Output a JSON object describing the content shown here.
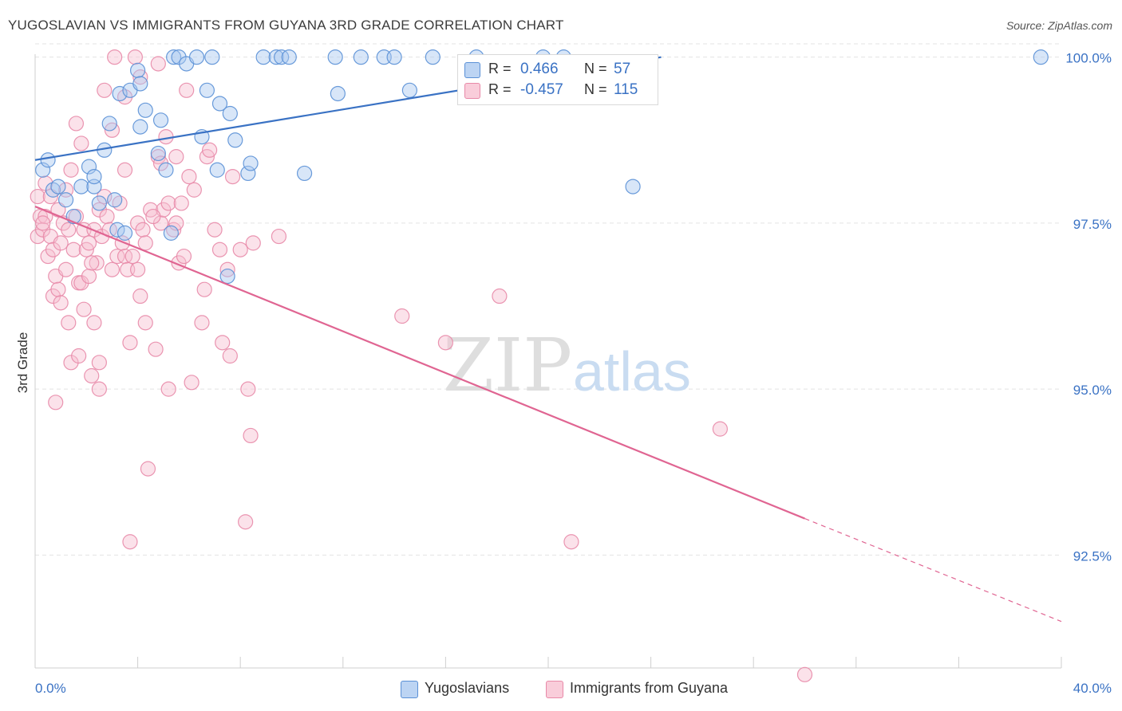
{
  "title": "YUGOSLAVIAN VS IMMIGRANTS FROM GUYANA 3RD GRADE CORRELATION CHART",
  "source": "Source: ZipAtlas.com",
  "watermark": {
    "zip": "ZIP",
    "atlas": "atlas"
  },
  "colors": {
    "blue_fill": "#a9c8ef",
    "blue_stroke": "#5a90d6",
    "blue_line": "#3a72c4",
    "pink_fill": "#f7bfd0",
    "pink_stroke": "#e889a8",
    "pink_line": "#e06592",
    "grid": "#e3e3e3",
    "tick_text": "#3a72c4"
  },
  "legend": {
    "rows": [
      {
        "r_label": "R =",
        "r_value": "0.466",
        "n_label": "N =",
        "n_value": "57"
      },
      {
        "r_label": "R =",
        "r_value": "-0.457",
        "n_label": "N =",
        "n_value": "115"
      }
    ]
  },
  "bottom_legend": [
    "Yugoslavians",
    "Immigrants from Guyana"
  ],
  "chart_data": {
    "type": "scatter",
    "title": "YUGOSLAVIAN VS IMMIGRANTS FROM GUYANA 3RD GRADE CORRELATION CHART",
    "xlabel": "",
    "ylabel": "3rd Grade",
    "xlim": [
      0,
      40
    ],
    "ylim": [
      90.8,
      100.2
    ],
    "x_tick_labels": [
      "0.0%",
      "40.0%"
    ],
    "y_ticks": [
      92.5,
      95.0,
      97.5,
      100.0
    ],
    "y_tick_labels": [
      "92.5%",
      "95.0%",
      "97.5%",
      "100.0%"
    ],
    "grid": true,
    "legend_position": "top-center",
    "series": [
      {
        "name": "Yugoslavians",
        "R": 0.466,
        "N": 57,
        "trend": {
          "x": [
            0,
            24.4
          ],
          "y": [
            98.45,
            100.0
          ]
        },
        "points": [
          [
            0.3,
            98.3
          ],
          [
            0.5,
            98.45
          ],
          [
            0.7,
            98.0
          ],
          [
            0.9,
            98.05
          ],
          [
            1.2,
            97.85
          ],
          [
            1.5,
            97.6
          ],
          [
            1.8,
            98.05
          ],
          [
            2.1,
            98.35
          ],
          [
            2.3,
            98.05
          ],
          [
            2.3,
            98.2
          ],
          [
            2.7,
            98.6
          ],
          [
            2.9,
            99.0
          ],
          [
            3.1,
            97.85
          ],
          [
            3.2,
            97.4
          ],
          [
            3.3,
            99.45
          ],
          [
            3.5,
            97.35
          ],
          [
            3.7,
            99.5
          ],
          [
            4.0,
            99.8
          ],
          [
            4.1,
            98.95
          ],
          [
            4.1,
            99.6
          ],
          [
            4.3,
            99.2
          ],
          [
            4.8,
            98.55
          ],
          [
            4.9,
            99.05
          ],
          [
            5.1,
            98.3
          ],
          [
            5.3,
            97.35
          ],
          [
            5.4,
            100.0
          ],
          [
            5.6,
            100.0
          ],
          [
            5.9,
            99.9
          ],
          [
            6.3,
            100.0
          ],
          [
            6.5,
            98.8
          ],
          [
            6.7,
            99.5
          ],
          [
            6.9,
            100.0
          ],
          [
            7.1,
            98.3
          ],
          [
            7.2,
            99.3
          ],
          [
            7.5,
            96.7
          ],
          [
            7.6,
            99.15
          ],
          [
            7.8,
            98.75
          ],
          [
            8.3,
            98.25
          ],
          [
            8.4,
            98.4
          ],
          [
            8.9,
            100.0
          ],
          [
            9.4,
            100.0
          ],
          [
            9.6,
            100.0
          ],
          [
            9.9,
            100.0
          ],
          [
            10.5,
            98.25
          ],
          [
            11.7,
            100.0
          ],
          [
            11.8,
            99.45
          ],
          [
            12.7,
            100.0
          ],
          [
            13.6,
            100.0
          ],
          [
            14.0,
            100.0
          ],
          [
            14.6,
            99.5
          ],
          [
            15.5,
            100.0
          ],
          [
            17.2,
            100.0
          ],
          [
            19.8,
            100.0
          ],
          [
            20.6,
            100.0
          ],
          [
            23.3,
            98.05
          ],
          [
            39.2,
            100.0
          ],
          [
            2.5,
            97.8
          ]
        ]
      },
      {
        "name": "Immigrants from Guyana",
        "R": -0.457,
        "N": 115,
        "trend": {
          "x": [
            0,
            30.0
          ],
          "y": [
            97.75,
            93.05
          ]
        },
        "trend_dashed": {
          "x": [
            30.0,
            40.0
          ],
          "y": [
            93.05,
            91.5
          ]
        },
        "points": [
          [
            0.1,
            97.3
          ],
          [
            0.1,
            97.9
          ],
          [
            0.2,
            97.6
          ],
          [
            0.3,
            97.4
          ],
          [
            0.4,
            97.6
          ],
          [
            0.4,
            98.1
          ],
          [
            0.5,
            97.0
          ],
          [
            0.6,
            97.9
          ],
          [
            0.6,
            97.3
          ],
          [
            0.7,
            96.4
          ],
          [
            0.7,
            97.1
          ],
          [
            0.8,
            96.7
          ],
          [
            0.8,
            94.8
          ],
          [
            0.9,
            96.5
          ],
          [
            1.0,
            97.2
          ],
          [
            1.0,
            96.3
          ],
          [
            1.1,
            97.5
          ],
          [
            1.2,
            96.8
          ],
          [
            1.3,
            96.0
          ],
          [
            1.3,
            97.4
          ],
          [
            1.4,
            98.3
          ],
          [
            1.4,
            95.4
          ],
          [
            1.5,
            97.1
          ],
          [
            1.6,
            97.6
          ],
          [
            1.6,
            99.0
          ],
          [
            1.7,
            96.6
          ],
          [
            1.7,
            95.5
          ],
          [
            1.8,
            96.6
          ],
          [
            1.8,
            98.7
          ],
          [
            1.9,
            97.4
          ],
          [
            1.9,
            96.2
          ],
          [
            2.0,
            97.1
          ],
          [
            2.1,
            96.7
          ],
          [
            2.1,
            97.2
          ],
          [
            2.2,
            95.2
          ],
          [
            2.3,
            96.0
          ],
          [
            2.3,
            97.4
          ],
          [
            2.4,
            96.9
          ],
          [
            2.5,
            95.4
          ],
          [
            2.5,
            97.7
          ],
          [
            2.5,
            95.0
          ],
          [
            2.6,
            97.3
          ],
          [
            2.7,
            97.9
          ],
          [
            2.7,
            99.5
          ],
          [
            2.8,
            97.6
          ],
          [
            2.9,
            97.4
          ],
          [
            3.0,
            98.9
          ],
          [
            3.0,
            96.8
          ],
          [
            3.1,
            100.0
          ],
          [
            3.2,
            97.0
          ],
          [
            3.3,
            97.8
          ],
          [
            3.4,
            97.2
          ],
          [
            3.5,
            99.4
          ],
          [
            3.5,
            98.3
          ],
          [
            3.5,
            97.0
          ],
          [
            3.6,
            96.8
          ],
          [
            3.7,
            95.7
          ],
          [
            3.7,
            92.7
          ],
          [
            3.9,
            100.0
          ],
          [
            4.0,
            97.5
          ],
          [
            4.0,
            96.8
          ],
          [
            4.1,
            96.4
          ],
          [
            4.1,
            99.7
          ],
          [
            4.2,
            97.4
          ],
          [
            4.3,
            96.0
          ],
          [
            4.3,
            97.2
          ],
          [
            4.4,
            93.8
          ],
          [
            4.5,
            97.7
          ],
          [
            4.7,
            95.6
          ],
          [
            4.8,
            98.5
          ],
          [
            4.8,
            99.9
          ],
          [
            4.9,
            97.5
          ],
          [
            4.9,
            98.4
          ],
          [
            5.0,
            97.7
          ],
          [
            5.1,
            98.8
          ],
          [
            5.2,
            97.8
          ],
          [
            5.2,
            95.0
          ],
          [
            5.4,
            97.4
          ],
          [
            5.5,
            98.5
          ],
          [
            5.5,
            97.5
          ],
          [
            5.6,
            96.9
          ],
          [
            5.7,
            97.8
          ],
          [
            5.9,
            99.5
          ],
          [
            6.1,
            95.1
          ],
          [
            6.2,
            98.0
          ],
          [
            6.5,
            96.0
          ],
          [
            6.7,
            98.5
          ],
          [
            6.8,
            98.6
          ],
          [
            7.2,
            97.1
          ],
          [
            7.3,
            95.7
          ],
          [
            7.5,
            96.8
          ],
          [
            7.6,
            95.5
          ],
          [
            7.7,
            98.2
          ],
          [
            8.0,
            97.1
          ],
          [
            8.2,
            93.0
          ],
          [
            8.3,
            95.0
          ],
          [
            8.4,
            94.3
          ],
          [
            8.5,
            97.2
          ],
          [
            9.5,
            97.3
          ],
          [
            14.3,
            96.1
          ],
          [
            16.0,
            95.7
          ],
          [
            18.1,
            96.4
          ],
          [
            20.9,
            92.7
          ],
          [
            26.7,
            94.4
          ],
          [
            30.0,
            90.7
          ],
          [
            0.9,
            97.7
          ],
          [
            1.2,
            98.0
          ],
          [
            2.2,
            96.9
          ],
          [
            3.8,
            97.0
          ],
          [
            4.6,
            97.6
          ],
          [
            5.8,
            97.0
          ],
          [
            6.0,
            98.2
          ],
          [
            6.6,
            96.5
          ],
          [
            7.0,
            97.4
          ],
          [
            0.3,
            97.5
          ]
        ]
      }
    ]
  }
}
